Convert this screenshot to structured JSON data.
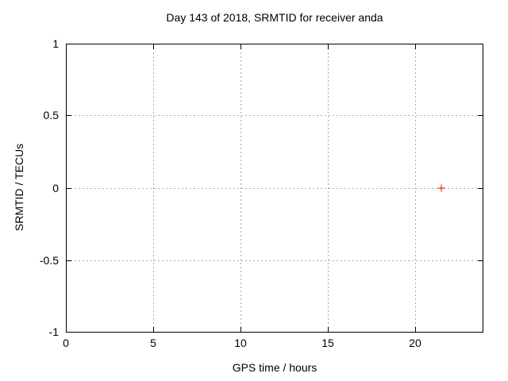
{
  "chart_data": {
    "type": "scatter",
    "title": "Day 143 of 2018, SRMTID for receiver anda",
    "xlabel": "GPS time / hours",
    "ylabel": "SRMTID / TECUs",
    "xlim": [
      0,
      24
    ],
    "ylim": [
      -1,
      1
    ],
    "xticks": [
      0,
      5,
      10,
      15,
      20
    ],
    "yticks": [
      -1,
      -0.5,
      0,
      0.5,
      1
    ],
    "xtick_labels": [
      "0",
      "5",
      "10",
      "15",
      "20"
    ],
    "ytick_labels": [
      "-1",
      "-0.5",
      "0",
      "0.5",
      "1"
    ],
    "grid": "dotted",
    "grid_color": "#a8a8a8",
    "axis_color": "#000000",
    "background_color": "#ffffff",
    "legend_position": "none",
    "series": [
      {
        "name": "SRMTID",
        "marker": "plus",
        "color": "#ff0000",
        "points": [
          [
            21.6,
            0.0
          ]
        ]
      }
    ]
  }
}
